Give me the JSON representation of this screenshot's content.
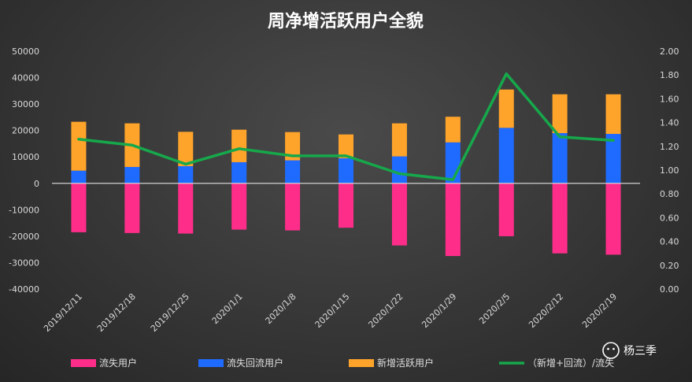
{
  "chart_data": {
    "type": "bar",
    "stacked": true,
    "title": "周净增活跃用户全貌",
    "categories": [
      "2019/12/11",
      "2019/12/18",
      "2019/12/25",
      "2020/1/1",
      "2020/1/8",
      "2020/1/15",
      "2020/1/22",
      "2020/1/29",
      "2020/2/5",
      "2020/2/12",
      "2020/2/19"
    ],
    "y_left": {
      "min": -40000,
      "max": 50000,
      "step": 10000,
      "tick_labels": [
        "-40000",
        "-30000",
        "-20000",
        "-10000",
        "0",
        "10000",
        "20000",
        "30000",
        "40000",
        "50000"
      ]
    },
    "y_right": {
      "min": 0,
      "max": 2,
      "step": 0.2,
      "tick_labels": [
        "0.00",
        "0.20",
        "0.40",
        "0.60",
        "0.80",
        "1.00",
        "1.20",
        "1.40",
        "1.60",
        "1.80",
        "2.00"
      ]
    },
    "series": [
      {
        "name": "流失用户",
        "kind": "bar",
        "axis": "left",
        "color": "#ff2d8a",
        "values": [
          -18500,
          -18800,
          -19000,
          -17500,
          -17800,
          -16800,
          -23500,
          -27500,
          -20000,
          -26500,
          -27000
        ]
      },
      {
        "name": "流失回流用户",
        "kind": "bar",
        "axis": "left",
        "color": "#1f6bff",
        "values": [
          4800,
          6200,
          6500,
          8000,
          8700,
          9500,
          10200,
          15500,
          21000,
          19000,
          18700
        ]
      },
      {
        "name": "新增活跃用户",
        "kind": "bar",
        "axis": "left",
        "color": "#ffa42a",
        "values": [
          18500,
          16500,
          13000,
          12300,
          10700,
          9000,
          12500,
          9700,
          14500,
          14700,
          15000
        ]
      },
      {
        "name": "（新增+回流）/流失",
        "kind": "line",
        "axis": "right",
        "color": "#16a84b",
        "values": [
          1.26,
          1.21,
          1.05,
          1.18,
          1.12,
          1.12,
          0.97,
          0.92,
          1.81,
          1.28,
          1.25
        ]
      }
    ],
    "grid": false,
    "legend_position": "bottom"
  },
  "watermark": {
    "name": "杨三季"
  }
}
